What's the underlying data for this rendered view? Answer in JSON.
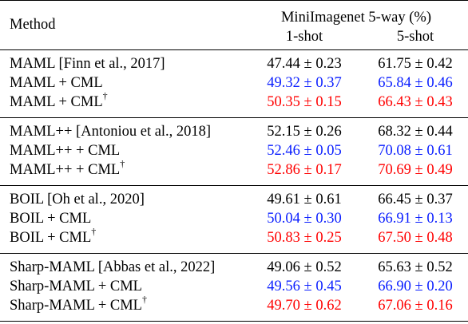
{
  "header": {
    "method_label": "Method",
    "group_label": "MiniImagenet 5-way (%)",
    "col1_label": "1-shot",
    "col2_label": "5-shot"
  },
  "colors": {
    "blue": "#0a1eff",
    "red": "#ff0000",
    "black": "#000000"
  },
  "groups": [
    {
      "rows": [
        {
          "method": "MAML [Finn et al., 2017]",
          "dagger": "",
          "one_shot": "47.44 ± 0.23",
          "five_shot": "61.75 ± 0.42",
          "color": "black"
        },
        {
          "method": "MAML + CML",
          "dagger": "",
          "one_shot": "49.32 ± 0.37",
          "five_shot": "65.84 ± 0.46",
          "color": "blue"
        },
        {
          "method": "MAML + CML",
          "dagger": "†",
          "one_shot": "50.35 ± 0.15",
          "five_shot": "66.43 ± 0.43",
          "color": "red"
        }
      ]
    },
    {
      "rows": [
        {
          "method": "MAML++ [Antoniou et al., 2018]",
          "dagger": "",
          "one_shot": "52.15 ± 0.26",
          "five_shot": "68.32 ± 0.44",
          "color": "black"
        },
        {
          "method": "MAML++ + CML",
          "dagger": "",
          "one_shot": "52.46 ± 0.05",
          "five_shot": "70.08 ± 0.61",
          "color": "blue"
        },
        {
          "method": "MAML++ + CML",
          "dagger": "†",
          "one_shot": "52.86 ± 0.17",
          "five_shot": "70.69 ± 0.49",
          "color": "red"
        }
      ]
    },
    {
      "rows": [
        {
          "method": "BOIL [Oh et al., 2020]",
          "dagger": "",
          "one_shot": "49.61 ± 0.61",
          "five_shot": "66.45 ± 0.37",
          "color": "black"
        },
        {
          "method": "BOIL + CML",
          "dagger": "",
          "one_shot": "50.04 ± 0.30",
          "five_shot": "66.91 ± 0.13",
          "color": "blue"
        },
        {
          "method": "BOIL + CML",
          "dagger": "†",
          "one_shot": "50.83 ± 0.25",
          "five_shot": "67.50 ± 0.48",
          "color": "red"
        }
      ]
    },
    {
      "rows": [
        {
          "method": "Sharp-MAML [Abbas et al., 2022]",
          "dagger": "",
          "one_shot": "49.06 ± 0.52",
          "five_shot": "65.63 ± 0.52",
          "color": "black"
        },
        {
          "method": "Sharp-MAML + CML",
          "dagger": "",
          "one_shot": "49.56 ± 0.45",
          "five_shot": "66.90 ± 0.20",
          "color": "blue"
        },
        {
          "method": "Sharp-MAML + CML",
          "dagger": "†",
          "one_shot": "49.70 ± 0.62",
          "five_shot": "67.06 ± 0.16",
          "color": "red"
        }
      ]
    }
  ]
}
